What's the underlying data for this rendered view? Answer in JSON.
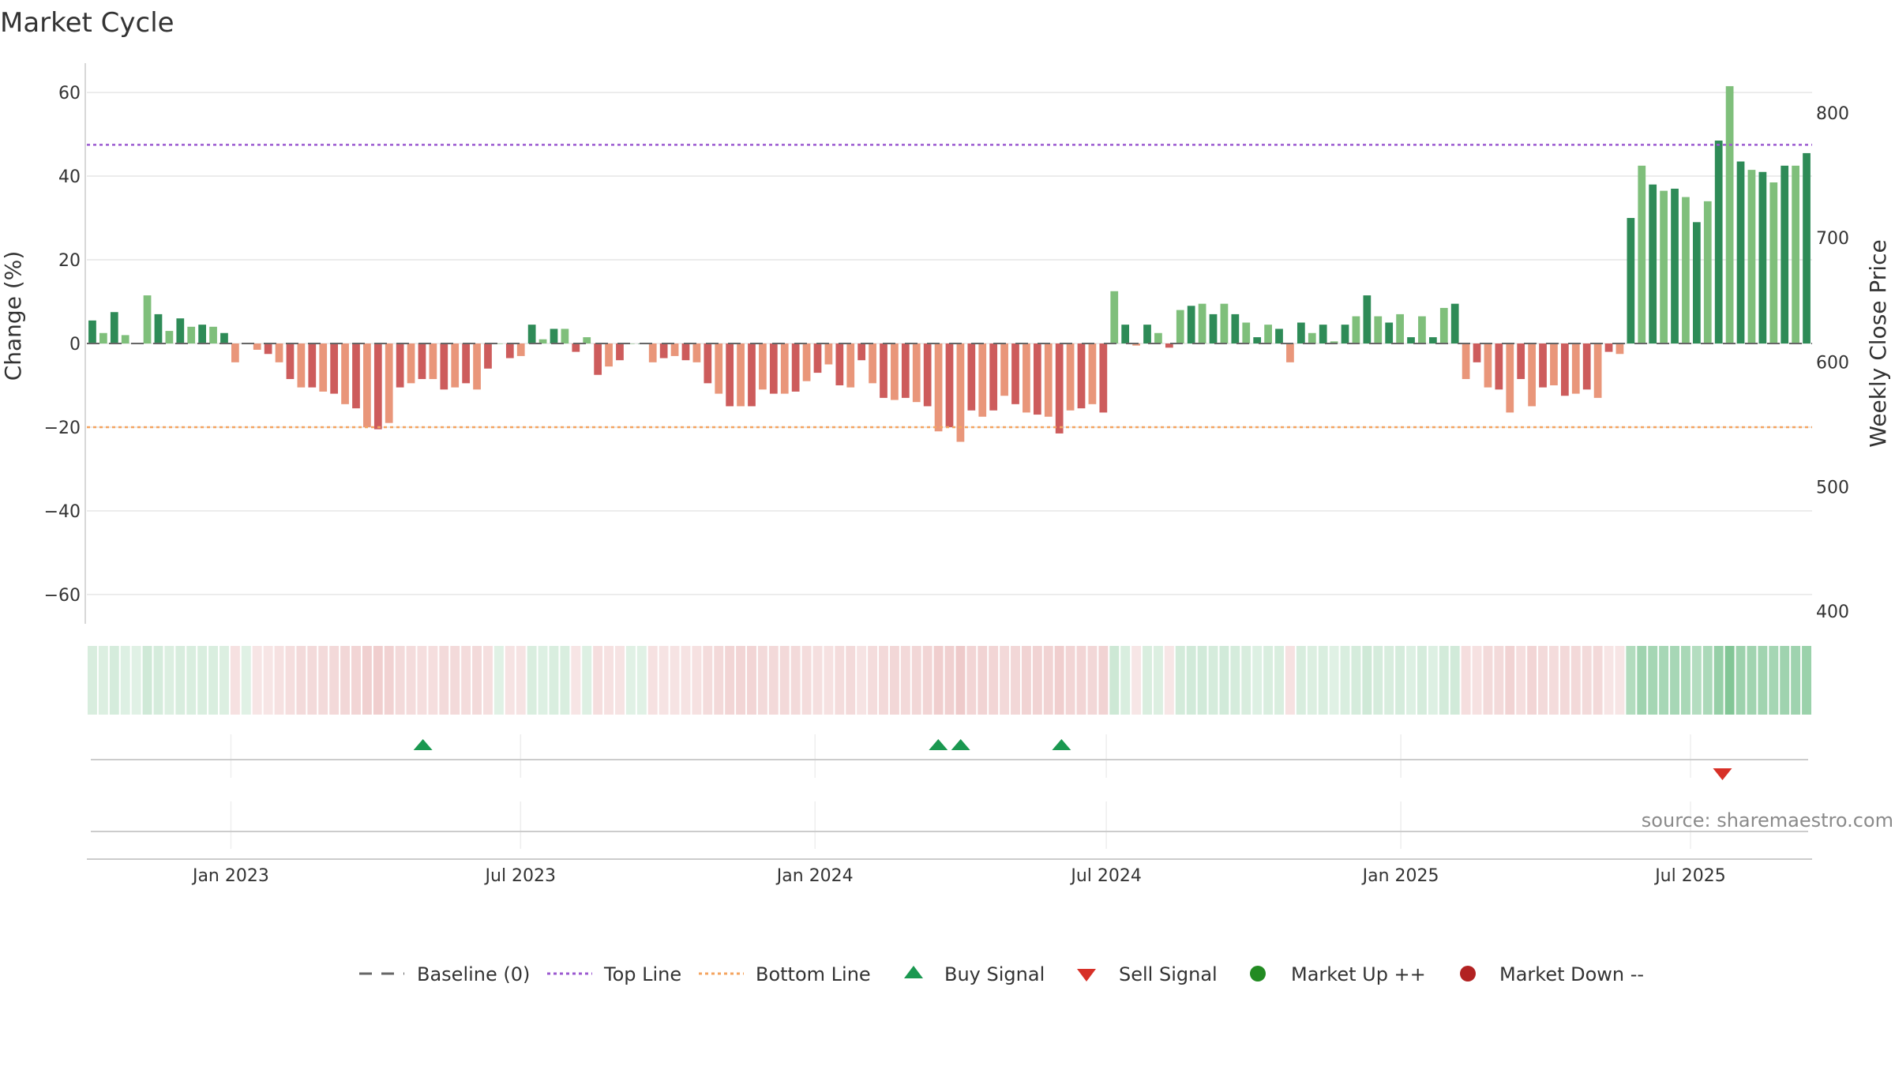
{
  "chart_data": {
    "type": "bar",
    "title": "Market Cycle",
    "ylabel": "Change (%)",
    "y2label": "Weekly Close Price",
    "ylim": [
      -67,
      67
    ],
    "yticks": [
      60,
      40,
      20,
      0,
      -20,
      -40,
      -60
    ],
    "ytick_labels": [
      "60",
      "40",
      "20",
      "0",
      "−20",
      "−40",
      "−60"
    ],
    "y2lim": [
      390,
      840
    ],
    "y2ticks": [
      800,
      700,
      600,
      500,
      400
    ],
    "y2tick_labels": [
      "800",
      "700",
      "600",
      "500",
      "400"
    ],
    "top_line": 47.5,
    "bottom_line": -20,
    "x_start": "2022-10-03",
    "x_end": "2025-09-15",
    "xticks": [
      "2023-01-01",
      "2023-07-01",
      "2024-01-01",
      "2024-07-01",
      "2025-01-01",
      "2025-07-01"
    ],
    "xtick_labels": [
      "Jan 2023",
      "Jul 2023",
      "Jan 2024",
      "Jul 2024",
      "Jan 2025",
      "Jul 2025"
    ],
    "grid": true,
    "legend_position": "bottom-center",
    "colors": {
      "up_strong": "#2e8b57",
      "up_weak": "#7fbf7b",
      "down_strong": "#cd5c5c",
      "down_weak": "#e9967a",
      "top_line": "#9b59d0",
      "bottom_line": "#f4a460",
      "baseline": "#666666",
      "buy": "#1a9850",
      "sell": "#d73027",
      "market_up": "#228b22",
      "market_down": "#b22222"
    },
    "series": [
      {
        "values": [
          5.5,
          2.5,
          7.5,
          2,
          0,
          11.5,
          7,
          3,
          6,
          4,
          4.5,
          4,
          2.5,
          -4.5,
          0,
          -1.5,
          -2.5,
          -4.5,
          -8.5,
          -10.5,
          -10.5,
          -11.5,
          -12,
          -14.5,
          -15.5,
          -20,
          -20.5,
          -19,
          -10.5,
          -9.5,
          -8.5,
          -8.5,
          -11,
          -10.5,
          -9.5,
          -11,
          -6,
          0,
          -3.5,
          -3,
          4.5,
          1,
          3.5,
          3.5,
          -2,
          1.5,
          -7.5,
          -5.5,
          -4,
          0,
          0,
          -4.5,
          -3.5,
          -3,
          -4,
          -4.5,
          -9.5,
          -12,
          -15,
          -15,
          -15,
          -11,
          -12,
          -12,
          -11.5,
          -9,
          -7,
          -5,
          -10,
          -10.5,
          -4,
          -9.5,
          -13,
          -13.5,
          -13,
          -14,
          -15,
          -21,
          -20,
          -23.5,
          -16,
          -17.5,
          -16,
          -12.5,
          -14.5,
          -16.5,
          -17,
          -17.5,
          -21.5,
          -16,
          -15.5,
          -14.5,
          -16.5,
          12.5,
          4.5,
          -0.5,
          4.5,
          2.5,
          -1,
          8,
          9,
          9.5,
          7,
          9.5,
          7,
          5,
          1.5,
          4.5,
          3.5,
          -4.5,
          5,
          2.5,
          4.5,
          0.5,
          4.5,
          6.5,
          11.5,
          6.5,
          5,
          7,
          1.5,
          6.5,
          1.5,
          8.5,
          9.5,
          -8.5,
          -4.5,
          -10.5,
          -11,
          -16.5,
          -8.5,
          -15,
          -10.5,
          -10,
          -12.5,
          -12,
          -11,
          -13,
          -2,
          -2.5,
          30,
          42.5,
          38,
          36.5,
          37,
          35,
          29,
          34,
          48.5,
          61.5,
          43.5,
          41.5,
          41,
          38.5,
          42.5,
          42.5,
          45.5
        ]
      }
    ],
    "buy_signals": [
      "2023-05-01",
      "2024-03-18",
      "2024-04-01",
      "2024-06-03"
    ],
    "sell_signals": [
      "2025-07-21"
    ]
  },
  "legend": {
    "baseline": "Baseline (0)",
    "top": "Top Line",
    "bottom": "Bottom Line",
    "buy": "Buy Signal",
    "sell": "Sell Signal",
    "up": "Market Up ++",
    "down": "Market Down --"
  },
  "source": "source: sharemaestro.com"
}
